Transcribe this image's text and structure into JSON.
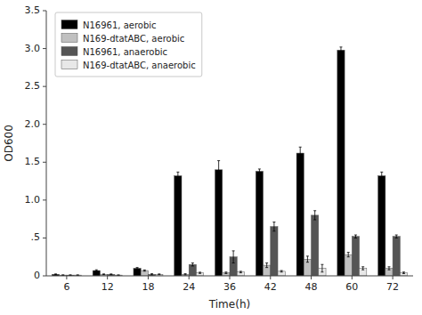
{
  "chart_data": {
    "type": "bar",
    "categories": [
      "6",
      "12",
      "18",
      "24",
      "36",
      "42",
      "48",
      "60",
      "72"
    ],
    "series": [
      {
        "name": "N16961, aerobic",
        "color": "#000000",
        "values": [
          0.02,
          0.07,
          0.1,
          1.32,
          1.4,
          1.38,
          1.62,
          2.98,
          1.32
        ],
        "errors": [
          0.005,
          0.01,
          0.01,
          0.05,
          0.12,
          0.03,
          0.08,
          0.04,
          0.05
        ]
      },
      {
        "name": "N169-dtatABC, aerobic",
        "color": "#c0c0c0",
        "values": [
          0.01,
          0.02,
          0.07,
          0.02,
          0.04,
          0.14,
          0.22,
          0.28,
          0.1
        ],
        "errors": [
          0.003,
          0.005,
          0.008,
          0.008,
          0.01,
          0.03,
          0.04,
          0.03,
          0.02
        ]
      },
      {
        "name": "N16961, anaerobic",
        "color": "#555555",
        "values": [
          0.01,
          0.02,
          0.02,
          0.15,
          0.25,
          0.65,
          0.8,
          0.52,
          0.52
        ],
        "errors": [
          0.003,
          0.005,
          0.008,
          0.02,
          0.08,
          0.06,
          0.06,
          0.02,
          0.02
        ]
      },
      {
        "name": "N169-dtatABC, anaerobic",
        "color": "#e8e8e8",
        "values": [
          0.01,
          0.01,
          0.02,
          0.04,
          0.05,
          0.06,
          0.1,
          0.1,
          0.04
        ],
        "errors": [
          0.002,
          0.002,
          0.005,
          0.008,
          0.01,
          0.01,
          0.05,
          0.02,
          0.01
        ]
      }
    ],
    "xlabel": "Time(h)",
    "ylabel": "OD600",
    "ylim": [
      0,
      3.5
    ],
    "yticks": [
      0,
      {
        "value": 0.5,
        "label": ".5"
      },
      {
        "value": 1.0,
        "label": "1.0"
      },
      1.5,
      {
        "value": 2.0,
        "label": "2.0"
      },
      2.5,
      {
        "value": 3.0,
        "label": "3.0"
      },
      3.5
    ],
    "grid": false,
    "legend": "upper left"
  }
}
